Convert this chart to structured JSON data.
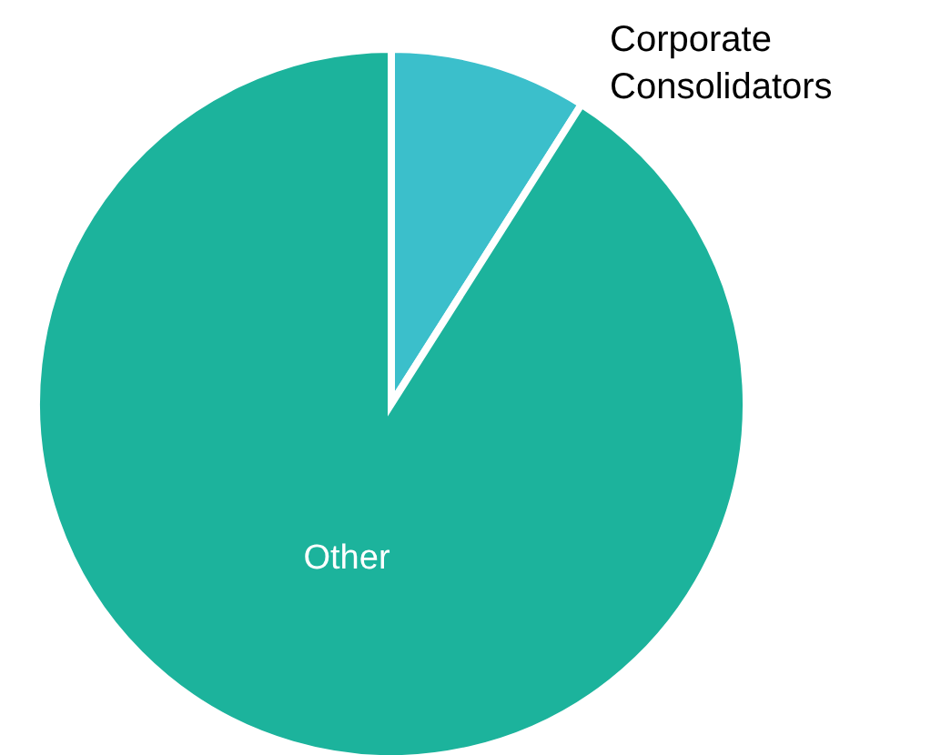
{
  "chart_data": {
    "type": "pie",
    "categories": [
      "Corporate Consolidators",
      "Other"
    ],
    "values": [
      9,
      91
    ],
    "colors": [
      "#3bbfcb",
      "#1cb39c"
    ]
  }
}
